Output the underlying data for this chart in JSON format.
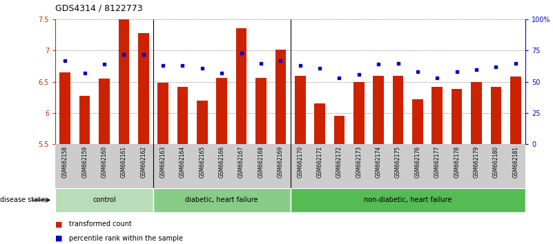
{
  "title": "GDS4314 / 8122773",
  "samples": [
    "GSM662158",
    "GSM662159",
    "GSM662160",
    "GSM662161",
    "GSM662162",
    "GSM662163",
    "GSM662164",
    "GSM662165",
    "GSM662166",
    "GSM662167",
    "GSM662168",
    "GSM662169",
    "GSM662170",
    "GSM662171",
    "GSM662172",
    "GSM662173",
    "GSM662174",
    "GSM662175",
    "GSM662176",
    "GSM662177",
    "GSM662178",
    "GSM662179",
    "GSM662180",
    "GSM662181"
  ],
  "bar_values": [
    6.65,
    6.27,
    6.55,
    7.5,
    7.28,
    6.48,
    6.42,
    6.2,
    6.56,
    7.36,
    6.56,
    7.02,
    6.6,
    6.15,
    5.95,
    6.5,
    6.6,
    6.6,
    6.22,
    6.42,
    6.38,
    6.5,
    6.42,
    6.58
  ],
  "percentile_values": [
    67,
    57,
    64,
    72,
    72,
    63,
    63,
    61,
    57,
    73,
    65,
    67,
    63,
    61,
    53,
    56,
    64,
    65,
    58,
    53,
    58,
    60,
    62,
    65
  ],
  "groups": [
    {
      "label": "control",
      "start": 0,
      "end": 5
    },
    {
      "label": "diabetic, heart failure",
      "start": 5,
      "end": 12
    },
    {
      "label": "non-diabetic, heart failure",
      "start": 12,
      "end": 24
    }
  ],
  "group_colors": [
    "#b8ddb8",
    "#88cc88",
    "#55bb55"
  ],
  "ylim_left": [
    5.5,
    7.5
  ],
  "ylim_right": [
    0,
    100
  ],
  "bar_color": "#cc2200",
  "dot_color": "#0000cc",
  "bar_width": 0.55,
  "grid_color": "#555555",
  "bg_color": "#ffffff",
  "tick_area_bg": "#cccccc",
  "legend_items": [
    {
      "label": "transformed count",
      "color": "#cc2200"
    },
    {
      "label": "percentile rank within the sample",
      "color": "#0000cc"
    }
  ],
  "disease_state_label": "disease state",
  "right_yticks": [
    0,
    25,
    50,
    75,
    100
  ],
  "right_yticklabels": [
    "0",
    "25",
    "50",
    "75",
    "100%"
  ],
  "left_yticks": [
    5.5,
    6.0,
    6.5,
    7.0,
    7.5
  ],
  "left_yticklabels": [
    "5.5",
    "6",
    "6.5",
    "7",
    "7.5"
  ]
}
